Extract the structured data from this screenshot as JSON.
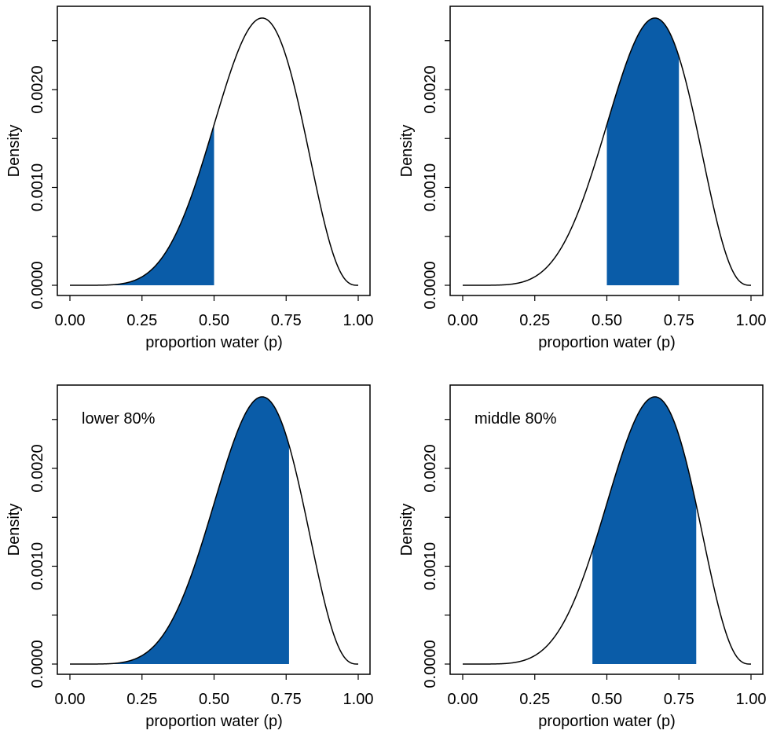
{
  "chart_data": [
    {
      "type": "area",
      "panel": "top-left",
      "title": "",
      "annotation": "",
      "xlabel": "proportion water (p)",
      "ylabel": "Density",
      "xlim": [
        0,
        1
      ],
      "ylim": [
        0,
        0.0027
      ],
      "xticks": [
        0,
        0.25,
        0.5,
        0.75,
        1
      ],
      "xtick_labels": [
        "0.00",
        "0.25",
        "0.50",
        "0.75",
        "1.00"
      ],
      "yticks": [
        0,
        0.0005,
        0.001,
        0.0015,
        0.002,
        0.0025
      ],
      "ytick_labels": [
        "0.0000",
        "",
        "0.0010",
        "",
        "0.0020",
        ""
      ],
      "curve": {
        "description": "posterior density of p (Beta(7,4) on 1000-point grid, 6 water in 9 tosses, flat prior)",
        "x": [
          0,
          0.1,
          0.2,
          0.25,
          0.3,
          0.4,
          0.5,
          0.6,
          0.6667,
          0.7,
          0.75,
          0.8,
          0.9,
          1.0
        ],
        "y": [
          0,
          7e-07,
          4.13e-05,
          0.00011,
          0.00024,
          0.00072,
          0.00164,
          0.00251,
          0.00273,
          0.00267,
          0.00234,
          0.00176,
          0.0005,
          0
        ]
      },
      "shaded_interval": [
        0,
        0.5
      ],
      "fill_color": "#0a5ca8",
      "line_color": "#000000",
      "grid": false,
      "legend": "none"
    },
    {
      "type": "area",
      "panel": "top-right",
      "title": "",
      "annotation": "",
      "xlabel": "proportion water (p)",
      "ylabel": "Density",
      "xlim": [
        0,
        1
      ],
      "ylim": [
        0,
        0.0027
      ],
      "xticks": [
        0,
        0.25,
        0.5,
        0.75,
        1
      ],
      "xtick_labels": [
        "0.00",
        "0.25",
        "0.50",
        "0.75",
        "1.00"
      ],
      "yticks": [
        0,
        0.0005,
        0.001,
        0.0015,
        0.002,
        0.0025
      ],
      "ytick_labels": [
        "0.0000",
        "",
        "0.0010",
        "",
        "0.0020",
        ""
      ],
      "curve": {
        "description": "posterior density of p (Beta(7,4) on 1000-point grid)",
        "x": [
          0,
          0.1,
          0.2,
          0.25,
          0.3,
          0.4,
          0.5,
          0.6,
          0.6667,
          0.7,
          0.75,
          0.8,
          0.9,
          1.0
        ],
        "y": [
          0,
          7e-07,
          4.13e-05,
          0.00011,
          0.00024,
          0.00072,
          0.00164,
          0.00251,
          0.00273,
          0.00267,
          0.00234,
          0.00176,
          0.0005,
          0
        ]
      },
      "shaded_interval": [
        0.5,
        0.75
      ],
      "fill_color": "#0a5ca8",
      "line_color": "#000000",
      "grid": false,
      "legend": "none"
    },
    {
      "type": "area",
      "panel": "bottom-left",
      "title": "",
      "annotation": "lower 80%",
      "xlabel": "proportion water (p)",
      "ylabel": "Density",
      "xlim": [
        0,
        1
      ],
      "ylim": [
        0,
        0.0027
      ],
      "xticks": [
        0,
        0.25,
        0.5,
        0.75,
        1
      ],
      "xtick_labels": [
        "0.00",
        "0.25",
        "0.50",
        "0.75",
        "1.00"
      ],
      "yticks": [
        0,
        0.0005,
        0.001,
        0.0015,
        0.002,
        0.0025
      ],
      "ytick_labels": [
        "0.0000",
        "",
        "0.0010",
        "",
        "0.0020",
        ""
      ],
      "curve": {
        "description": "posterior density of p (Beta(7,4) on 1000-point grid)",
        "x": [
          0,
          0.1,
          0.2,
          0.25,
          0.3,
          0.4,
          0.5,
          0.6,
          0.6667,
          0.7,
          0.75,
          0.8,
          0.9,
          1.0
        ],
        "y": [
          0,
          7e-07,
          4.13e-05,
          0.00011,
          0.00024,
          0.00072,
          0.00164,
          0.00251,
          0.00273,
          0.00267,
          0.00234,
          0.00176,
          0.0005,
          0
        ]
      },
      "shaded_interval": [
        0,
        0.76
      ],
      "fill_color": "#0a5ca8",
      "line_color": "#000000",
      "grid": false,
      "legend": "none"
    },
    {
      "type": "area",
      "panel": "bottom-right",
      "title": "",
      "annotation": "middle 80%",
      "xlabel": "proportion water (p)",
      "ylabel": "Density",
      "xlim": [
        0,
        1
      ],
      "ylim": [
        0,
        0.0027
      ],
      "xticks": [
        0,
        0.25,
        0.5,
        0.75,
        1
      ],
      "xtick_labels": [
        "0.00",
        "0.25",
        "0.50",
        "0.75",
        "1.00"
      ],
      "yticks": [
        0,
        0.0005,
        0.001,
        0.0015,
        0.002,
        0.0025
      ],
      "ytick_labels": [
        "0.0000",
        "",
        "0.0010",
        "",
        "0.0020",
        ""
      ],
      "curve": {
        "description": "posterior density of p (Beta(7,4) on 1000-point grid)",
        "x": [
          0,
          0.1,
          0.2,
          0.25,
          0.3,
          0.4,
          0.5,
          0.6,
          0.6667,
          0.7,
          0.75,
          0.8,
          0.9,
          1.0
        ],
        "y": [
          0,
          7e-07,
          4.13e-05,
          0.00011,
          0.00024,
          0.00072,
          0.00164,
          0.00251,
          0.00273,
          0.00267,
          0.00234,
          0.00176,
          0.0005,
          0
        ]
      },
      "shaded_interval": [
        0.45,
        0.81
      ],
      "fill_color": "#0a5ca8",
      "line_color": "#000000",
      "grid": false,
      "legend": "none"
    }
  ]
}
